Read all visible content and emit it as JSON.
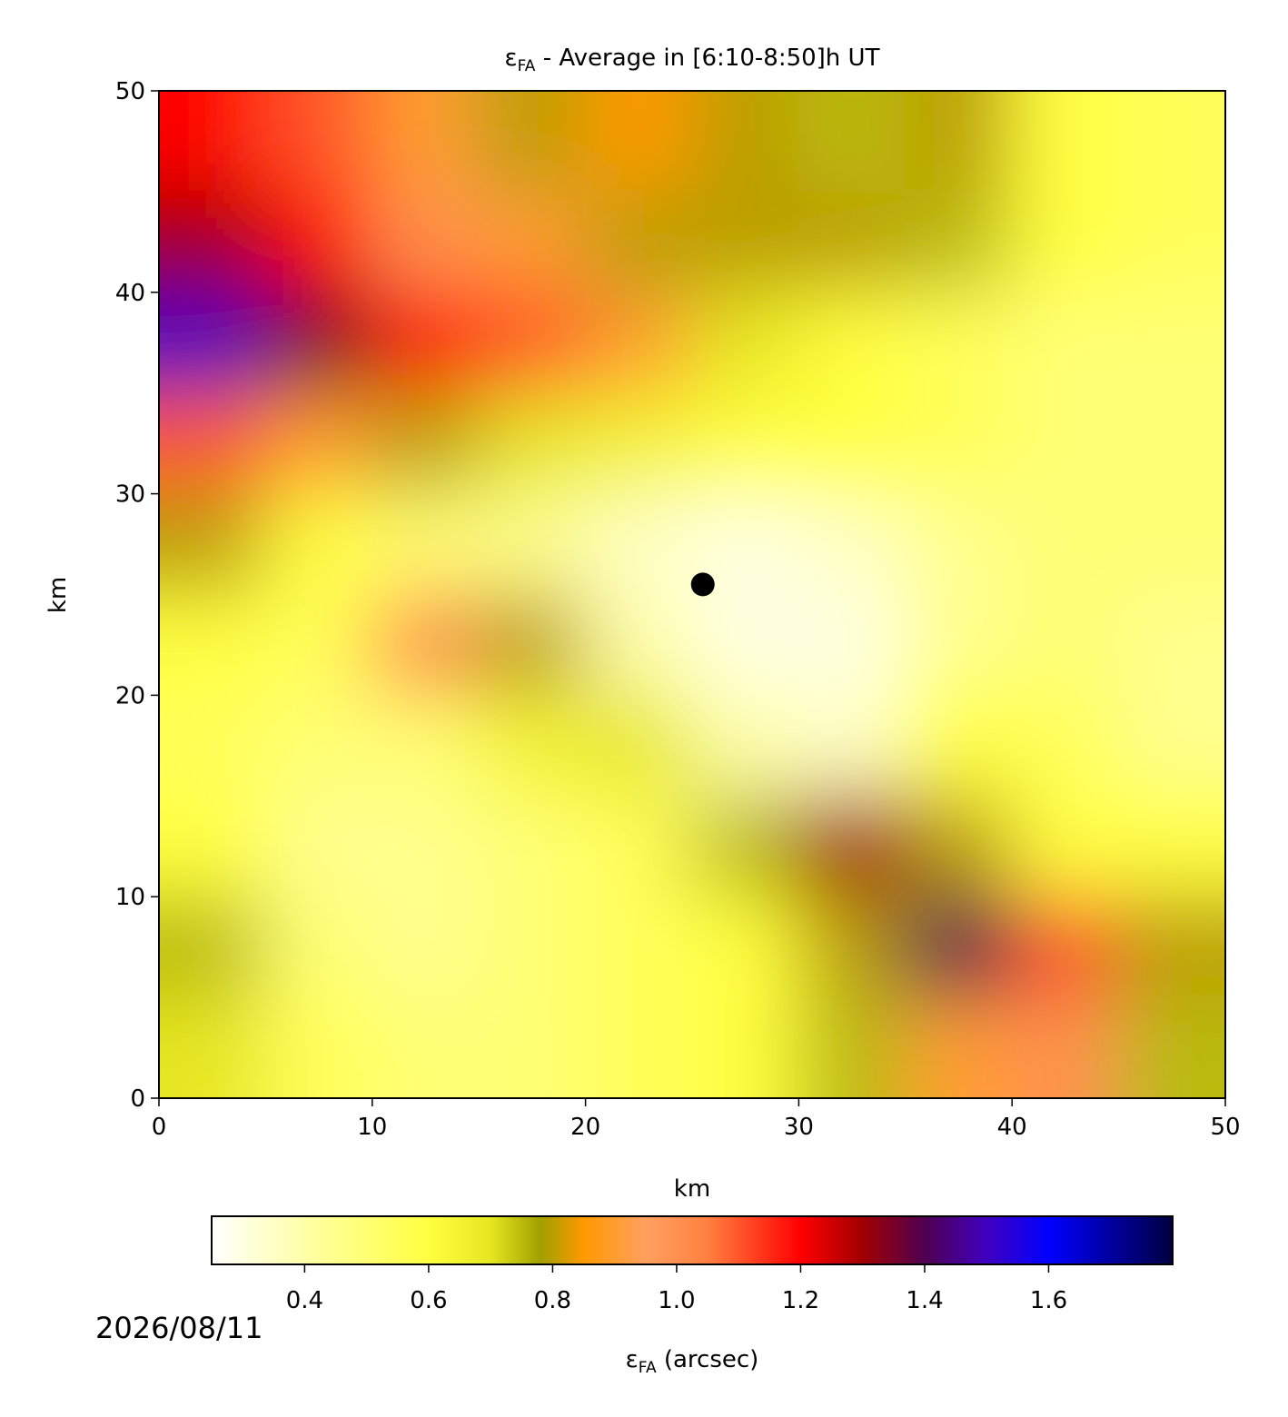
{
  "chart_data": {
    "type": "heatmap",
    "title": [
      "ε",
      "FA",
      " - Average in [6:10-8:50]h UT"
    ],
    "x_label": "km",
    "y_label": "km",
    "xlim": [
      0,
      50
    ],
    "ylim": [
      0,
      50
    ],
    "xticks": [
      0,
      10,
      20,
      30,
      40,
      50
    ],
    "yticks": [
      0,
      10,
      20,
      30,
      40,
      50
    ],
    "x": [
      2.5,
      7.5,
      12.5,
      17.5,
      22.5,
      27.5,
      32.5,
      37.5,
      42.5,
      47.5
    ],
    "y": [
      47.5,
      42.5,
      37.5,
      32.5,
      27.5,
      22.5,
      17.5,
      12.5,
      7.5,
      2.5
    ],
    "z": [
      [
        1.2,
        1.1,
        0.9,
        0.8,
        0.85,
        0.8,
        0.75,
        0.8,
        0.6,
        0.55
      ],
      [
        1.3,
        1.2,
        1.0,
        0.9,
        0.8,
        0.8,
        0.8,
        0.75,
        0.6,
        0.55
      ],
      [
        1.5,
        1.35,
        1.2,
        1.1,
        0.9,
        0.7,
        0.6,
        0.55,
        0.5,
        0.5
      ],
      [
        1.1,
        0.9,
        0.8,
        0.7,
        0.65,
        0.6,
        0.6,
        0.55,
        0.5,
        0.5
      ],
      [
        0.8,
        0.6,
        0.5,
        0.45,
        0.35,
        0.3,
        0.35,
        0.45,
        0.5,
        0.5
      ],
      [
        0.6,
        0.55,
        1.0,
        0.8,
        0.4,
        0.3,
        0.3,
        0.45,
        0.5,
        0.45
      ],
      [
        0.55,
        0.5,
        0.5,
        0.65,
        0.7,
        0.4,
        0.35,
        0.6,
        0.55,
        0.45
      ],
      [
        0.6,
        0.45,
        0.45,
        0.5,
        0.55,
        0.75,
        1.3,
        0.8,
        0.6,
        0.6
      ],
      [
        0.75,
        0.5,
        0.45,
        0.5,
        0.55,
        0.6,
        0.8,
        1.4,
        1.1,
        0.8
      ],
      [
        0.7,
        0.55,
        0.5,
        0.5,
        0.55,
        0.6,
        0.75,
        0.9,
        1.0,
        0.75
      ]
    ],
    "marker": {
      "x": 25.5,
      "y": 25.5,
      "color": "#000000"
    },
    "colormap": [
      [
        0.25,
        "#ffffff"
      ],
      [
        0.4,
        "#ffffa8"
      ],
      [
        0.6,
        "#ffff40"
      ],
      [
        0.7,
        "#e6e620"
      ],
      [
        0.78,
        "#a0a000"
      ],
      [
        0.85,
        "#ff9900"
      ],
      [
        0.95,
        "#ffa060"
      ],
      [
        1.05,
        "#ff8040"
      ],
      [
        1.2,
        "#ff0000"
      ],
      [
        1.3,
        "#a00000"
      ],
      [
        1.4,
        "#500050"
      ],
      [
        1.5,
        "#4000c0"
      ],
      [
        1.6,
        "#0000ff"
      ],
      [
        1.8,
        "#000040"
      ]
    ],
    "clim": [
      0.25,
      1.8
    ],
    "cticks": [
      0.4,
      0.6,
      0.8,
      {
        "value": 1,
        "label": "1.0"
      },
      1.2,
      1.4,
      1.6
    ],
    "colorbar_label": [
      "ε",
      "FA",
      " (arcsec)"
    ],
    "date": "2026/08/11"
  }
}
